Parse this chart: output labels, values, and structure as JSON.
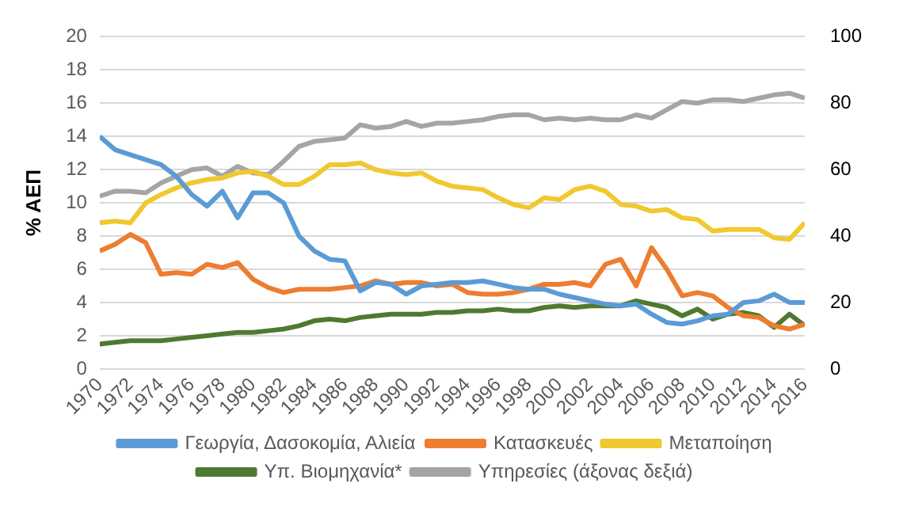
{
  "chart_data": {
    "type": "line",
    "ylabel": "% ΑΕΠ",
    "x": [
      1970,
      1971,
      1972,
      1973,
      1974,
      1975,
      1976,
      1977,
      1978,
      1979,
      1980,
      1981,
      1982,
      1983,
      1984,
      1985,
      1986,
      1987,
      1988,
      1989,
      1990,
      1991,
      1992,
      1993,
      1994,
      1995,
      1996,
      1997,
      1998,
      1999,
      2000,
      2001,
      2002,
      2003,
      2004,
      2005,
      2006,
      2007,
      2008,
      2009,
      2010,
      2011,
      2012,
      2013,
      2014,
      2015,
      2016
    ],
    "xlim": [
      1970,
      2016
    ],
    "xticks": [
      1970,
      1972,
      1974,
      1976,
      1978,
      1980,
      1982,
      1984,
      1986,
      1988,
      1990,
      1992,
      1994,
      1996,
      1998,
      2000,
      2002,
      2004,
      2006,
      2008,
      2010,
      2012,
      2014,
      2016
    ],
    "ylim": [
      0,
      20
    ],
    "yticks": [
      0,
      2,
      4,
      6,
      8,
      10,
      12,
      14,
      16,
      18,
      20
    ],
    "y2lim": [
      0,
      100
    ],
    "y2ticks": [
      0,
      20,
      40,
      60,
      80,
      100
    ],
    "grid": "y",
    "legend": "bottom",
    "marker": "none",
    "line_style": "solid",
    "series": [
      {
        "name": "Γεωργία, Δασοκομία, Αλιεία",
        "color": "#5b9bd5",
        "values": [
          14.0,
          13.2,
          12.9,
          12.6,
          12.3,
          11.6,
          10.5,
          9.8,
          10.7,
          9.1,
          10.6,
          10.6,
          10.0,
          8.0,
          7.1,
          6.6,
          6.5,
          4.7,
          5.2,
          5.1,
          4.5,
          5.0,
          5.1,
          5.2,
          5.2,
          5.3,
          5.1,
          4.9,
          4.8,
          4.8,
          4.5,
          4.3,
          4.1,
          3.9,
          3.8,
          3.9,
          3.3,
          2.8,
          2.7,
          2.9,
          3.2,
          3.3,
          4.0,
          4.1,
          4.5,
          4.0,
          4.0
        ]
      },
      {
        "name": "Κατασκευές",
        "color": "#ed7d31",
        "values": [
          7.1,
          7.5,
          8.1,
          7.6,
          5.7,
          5.8,
          5.7,
          6.3,
          6.1,
          6.4,
          5.4,
          4.9,
          4.6,
          4.8,
          4.8,
          4.8,
          4.9,
          5.0,
          5.3,
          5.1,
          5.2,
          5.2,
          5.0,
          5.1,
          4.6,
          4.5,
          4.5,
          4.6,
          4.8,
          5.1,
          5.1,
          5.2,
          5.0,
          6.3,
          6.6,
          5.0,
          7.3,
          6.0,
          4.4,
          4.6,
          4.4,
          3.7,
          3.2,
          3.1,
          2.6,
          2.4,
          2.7
        ]
      },
      {
        "name": "Μεταποίηση",
        "color": "#f0c830",
        "values": [
          8.8,
          8.9,
          8.8,
          10.0,
          10.5,
          10.9,
          11.2,
          11.4,
          11.5,
          11.8,
          11.9,
          11.6,
          11.1,
          11.1,
          11.6,
          12.3,
          12.3,
          12.4,
          12.0,
          11.8,
          11.7,
          11.8,
          11.3,
          11.0,
          10.9,
          10.8,
          10.3,
          9.9,
          9.7,
          10.3,
          10.2,
          10.8,
          11.0,
          10.7,
          9.9,
          9.8,
          9.5,
          9.6,
          9.1,
          9.0,
          8.3,
          8.4,
          8.4,
          8.4,
          7.9,
          7.8,
          8.8
        ]
      },
      {
        "name": "Υπ. Βιομηχανία*",
        "color": "#4e7a30",
        "values": [
          1.5,
          1.6,
          1.7,
          1.7,
          1.7,
          1.8,
          1.9,
          2.0,
          2.1,
          2.2,
          2.2,
          2.3,
          2.4,
          2.6,
          2.9,
          3.0,
          2.9,
          3.1,
          3.2,
          3.3,
          3.3,
          3.3,
          3.4,
          3.4,
          3.5,
          3.5,
          3.6,
          3.5,
          3.5,
          3.7,
          3.8,
          3.7,
          3.8,
          3.8,
          3.8,
          4.1,
          3.9,
          3.7,
          3.2,
          3.6,
          3.0,
          3.3,
          3.4,
          3.2,
          2.5,
          3.3,
          2.6
        ]
      },
      {
        "name": "Υπηρεσίες (άξονας δεξιά)",
        "color": "#a5a5a5",
        "axis": "y2",
        "values": [
          52,
          53.5,
          53.5,
          53,
          56,
          58,
          60,
          60.5,
          58,
          61,
          59,
          58.5,
          62.5,
          67,
          68.5,
          69,
          69.5,
          73.5,
          72.5,
          73,
          74.5,
          73,
          74,
          74,
          74.5,
          75,
          76,
          76.5,
          76.5,
          75,
          75.5,
          75,
          75.5,
          75,
          75,
          76.5,
          75.5,
          78,
          80.5,
          80,
          81,
          81,
          80.5,
          81.5,
          82.5,
          83,
          81.5
        ]
      }
    ]
  }
}
